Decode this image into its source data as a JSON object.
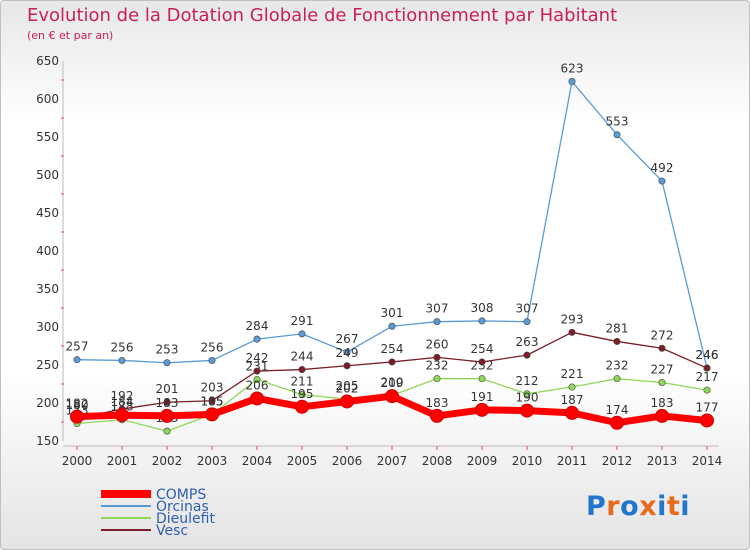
{
  "title": "Evolution de la Dotation Globale de Fonctionnement par Habitant",
  "subtitle": "(en € et par an)",
  "logo": {
    "text": "Proxiti",
    "colors": [
      "#2277cc",
      "#e86a1c",
      "#2277cc",
      "#e86a1c",
      "#2277cc",
      "#e86a1c",
      "#2277cc"
    ]
  },
  "chart_data": {
    "type": "line",
    "title": "Evolution de la Dotation Globale de Fonctionnement par Habitant",
    "subtitle": "(en € et par an)",
    "x": [
      "2000",
      "2001",
      "2002",
      "2003",
      "2004",
      "2005",
      "2006",
      "2007",
      "2008",
      "2009",
      "2010",
      "2011",
      "2012",
      "2013",
      "2014"
    ],
    "ylim": [
      150,
      650
    ],
    "yticks": [
      150,
      200,
      250,
      300,
      350,
      400,
      450,
      500,
      550,
      600,
      650
    ],
    "grid": false,
    "legend_position": "bottom-left",
    "series": [
      {
        "name": "COMPS",
        "color": "#ff0000",
        "values": [
          182,
          184,
          183,
          185,
          206,
          195,
          202,
          209,
          183,
          191,
          190,
          187,
          174,
          183,
          177
        ]
      },
      {
        "name": "Orcinas",
        "color": "#5a9bd5",
        "values": [
          257,
          256,
          253,
          256,
          284,
          291,
          267,
          301,
          307,
          308,
          307,
          623,
          553,
          492,
          246
        ]
      },
      {
        "name": "Dieulefit",
        "color": "#8ed858",
        "values": [
          173,
          178,
          163,
          185,
          231,
          211,
          205,
          210,
          232,
          232,
          212,
          221,
          232,
          227,
          217
        ]
      },
      {
        "name": "Vesc",
        "color": "#7a1e28",
        "values": [
          180,
          192,
          201,
          203,
          242,
          244,
          249,
          254,
          260,
          254,
          263,
          293,
          281,
          272,
          246
        ]
      }
    ]
  }
}
